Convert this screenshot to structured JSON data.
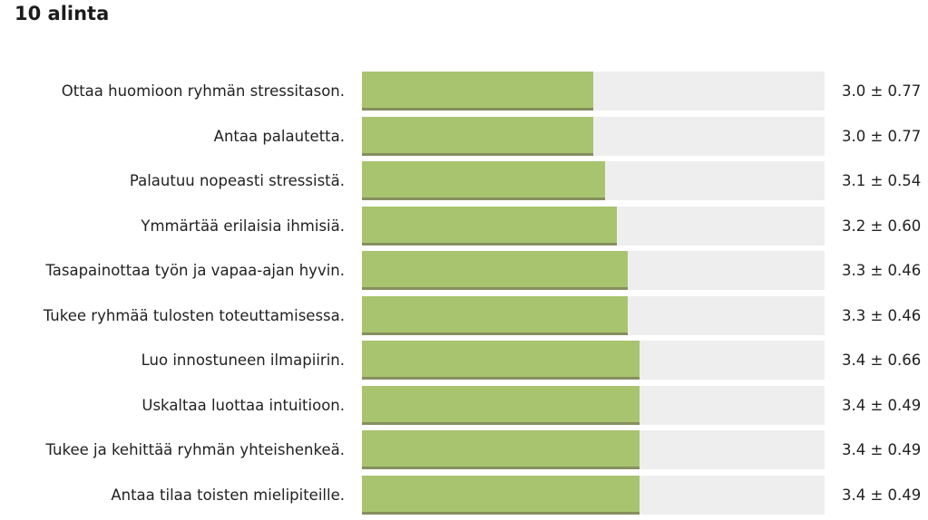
{
  "title": "10 alinta",
  "chart_data": {
    "type": "bar",
    "orientation": "horizontal",
    "title": "10 alinta",
    "xlim": [
      1,
      5
    ],
    "categories": [
      "Ottaa huomioon ryhmän stressitason.",
      "Antaa palautetta.",
      "Palautuu nopeasti stressistä.",
      "Ymmärtää erilaisia ihmisiä.",
      "Tasapainottaa työn ja vapaa-ajan hyvin.",
      "Tukee ryhmää tulosten toteuttamisessa.",
      "Luo innostuneen ilmapiirin.",
      "Uskaltaa luottaa intuitioon.",
      "Tukee ja kehittää ryhmän yhteishenkeä.",
      "Antaa tilaa toisten mielipiteille."
    ],
    "values": [
      3.0,
      3.0,
      3.1,
      3.2,
      3.3,
      3.3,
      3.4,
      3.4,
      3.4,
      3.4
    ],
    "value_labels": [
      "3.0 ± 0.77",
      "3.0 ± 0.77",
      "3.1 ± 0.54",
      "3.2 ± 0.60",
      "3.3 ± 0.46",
      "3.3 ± 0.46",
      "3.4 ± 0.66",
      "3.4 ± 0.49",
      "3.4 ± 0.49",
      "3.4 ± 0.49"
    ],
    "colors": {
      "bar": "#a8c46f",
      "bar_shadow": "#868f5e",
      "track": "#eeeeee"
    }
  }
}
